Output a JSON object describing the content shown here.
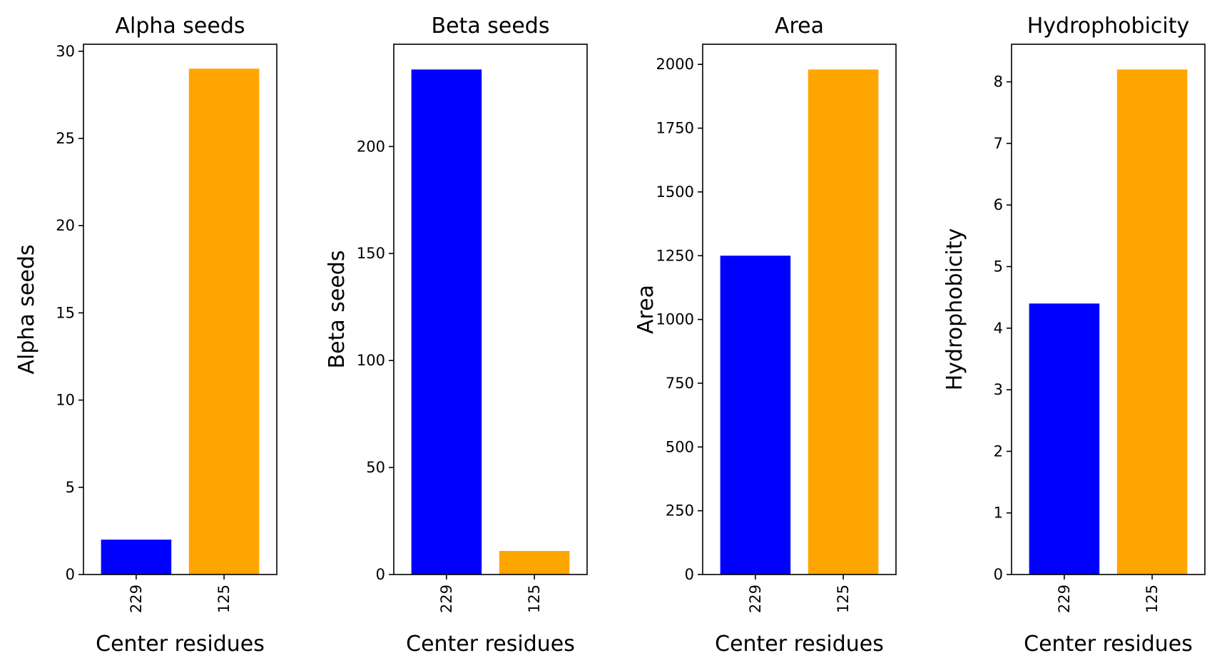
{
  "chart_data": [
    {
      "type": "bar",
      "title": "Alpha seeds",
      "xlabel": "Center residues",
      "ylabel": "Alpha seeds",
      "categories": [
        "229",
        "125"
      ],
      "values": [
        2,
        29
      ],
      "colors": [
        "#0000ff",
        "#ffa500"
      ],
      "ylim": [
        0,
        30.4
      ],
      "yticks": [
        0,
        5,
        10,
        15,
        20,
        25,
        30
      ],
      "grid": false
    },
    {
      "type": "bar",
      "title": "Beta seeds",
      "xlabel": "Center residues",
      "ylabel": "Beta seeds",
      "categories": [
        "229",
        "125"
      ],
      "values": [
        236,
        11
      ],
      "colors": [
        "#0000ff",
        "#ffa500"
      ],
      "ylim": [
        0,
        247.8
      ],
      "yticks": [
        0,
        50,
        100,
        150,
        200
      ],
      "grid": false
    },
    {
      "type": "bar",
      "title": "Area",
      "xlabel": "Center residues",
      "ylabel": "Area",
      "categories": [
        "229",
        "125"
      ],
      "values": [
        1250,
        1980
      ],
      "colors": [
        "#0000ff",
        "#ffa500"
      ],
      "ylim": [
        0,
        2079
      ],
      "yticks": [
        0,
        250,
        500,
        750,
        1000,
        1250,
        1500,
        1750,
        2000
      ],
      "grid": false
    },
    {
      "type": "bar",
      "title": "Hydrophobicity",
      "xlabel": "Center residues",
      "ylabel": "Hydrophobicity",
      "categories": [
        "229",
        "125"
      ],
      "values": [
        4.4,
        8.2
      ],
      "colors": [
        "#0000ff",
        "#ffa500"
      ],
      "ylim": [
        0,
        8.61
      ],
      "yticks": [
        0,
        1,
        2,
        3,
        4,
        5,
        6,
        7,
        8
      ],
      "grid": false
    }
  ]
}
